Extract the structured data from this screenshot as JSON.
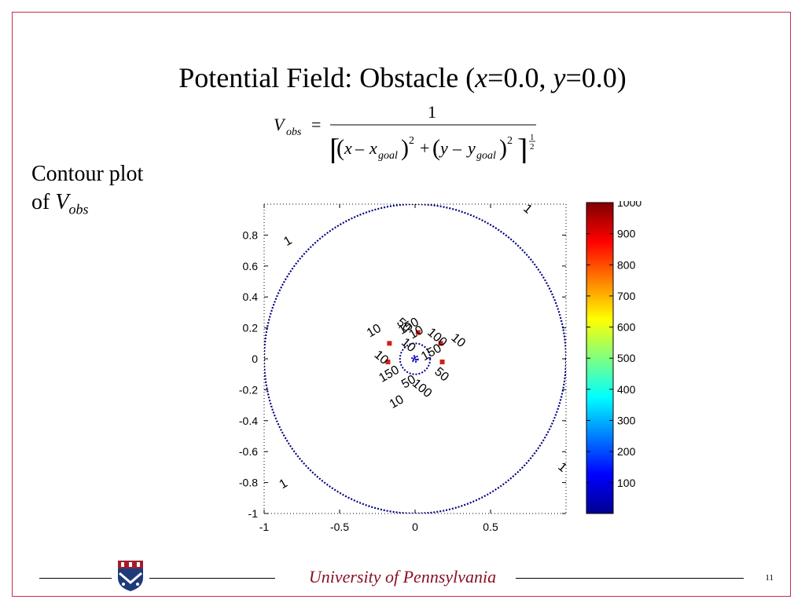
{
  "slide": {
    "title_prefix": "Potential Field: Obstacle (",
    "title_x": "x",
    "title_eq1": "=0.0, ",
    "title_y": "y",
    "title_eq2": "=0.0)",
    "side_text_line1": "Contour plot",
    "side_text_of": "of ",
    "side_text_V": "V",
    "side_text_sub": "obs",
    "footer": "University of Pennsylvania",
    "page_number": "11"
  },
  "equation": {
    "lhs_V": "V",
    "lhs_sub": "obs",
    "equals": "=",
    "numerator": "1",
    "x": "x",
    "minus": "–",
    "x_goal": "x",
    "goal_sub": "goal",
    "plus": "+",
    "y": "y",
    "y_goal": "y",
    "sq": "2",
    "half_num": "1",
    "half_den": "2"
  },
  "chart_data": {
    "type": "contour",
    "xlim": [
      -1,
      1
    ],
    "ylim": [
      -1,
      1
    ],
    "x_ticks": [
      "-1",
      "-0.5",
      "0",
      "0.5"
    ],
    "y_ticks": [
      "0.8",
      "0.6",
      "0.4",
      "0.2",
      "0",
      "-0.2",
      "-0.4",
      "-0.6",
      "-0.8",
      "-1"
    ],
    "contour_levels": [
      1,
      10,
      50,
      100,
      150,
      1000
    ],
    "colorbar": {
      "ticks": [
        "1000",
        "900",
        "800",
        "700",
        "600",
        "500",
        "400",
        "300",
        "200",
        "100"
      ],
      "range": [
        1,
        1000
      ]
    },
    "contour_labels": [
      {
        "text": "1",
        "x": -0.83,
        "y": 0.74
      },
      {
        "text": "1",
        "x": 0.73,
        "y": 0.95
      },
      {
        "text": "1",
        "x": -0.86,
        "y": -0.83
      },
      {
        "text": "1",
        "x": 0.96,
        "y": -0.72
      },
      {
        "text": "10",
        "x": -0.26,
        "y": 0.16
      },
      {
        "text": "10",
        "x": 0.27,
        "y": 0.1
      },
      {
        "text": "10",
        "x": -0.11,
        "y": -0.3
      },
      {
        "text": "10",
        "x": -0.06,
        "y": 0.07
      },
      {
        "text": "10",
        "x": 0.02,
        "y": 0.15
      },
      {
        "text": "100",
        "x": 0.13,
        "y": 0.12
      },
      {
        "text": "150",
        "x": 0.12,
        "y": 0.02
      },
      {
        "text": "50",
        "x": -0.09,
        "y": 0.2
      },
      {
        "text": "150",
        "x": -0.03,
        "y": 0.19
      },
      {
        "text": "10",
        "x": -0.24,
        "y": -0.01
      },
      {
        "text": "50",
        "x": -0.03,
        "y": -0.17
      },
      {
        "text": "50",
        "x": 0.16,
        "y": -0.12
      },
      {
        "text": "150",
        "x": -0.16,
        "y": -0.12
      },
      {
        "text": "100",
        "x": 0.03,
        "y": -0.21
      }
    ]
  }
}
